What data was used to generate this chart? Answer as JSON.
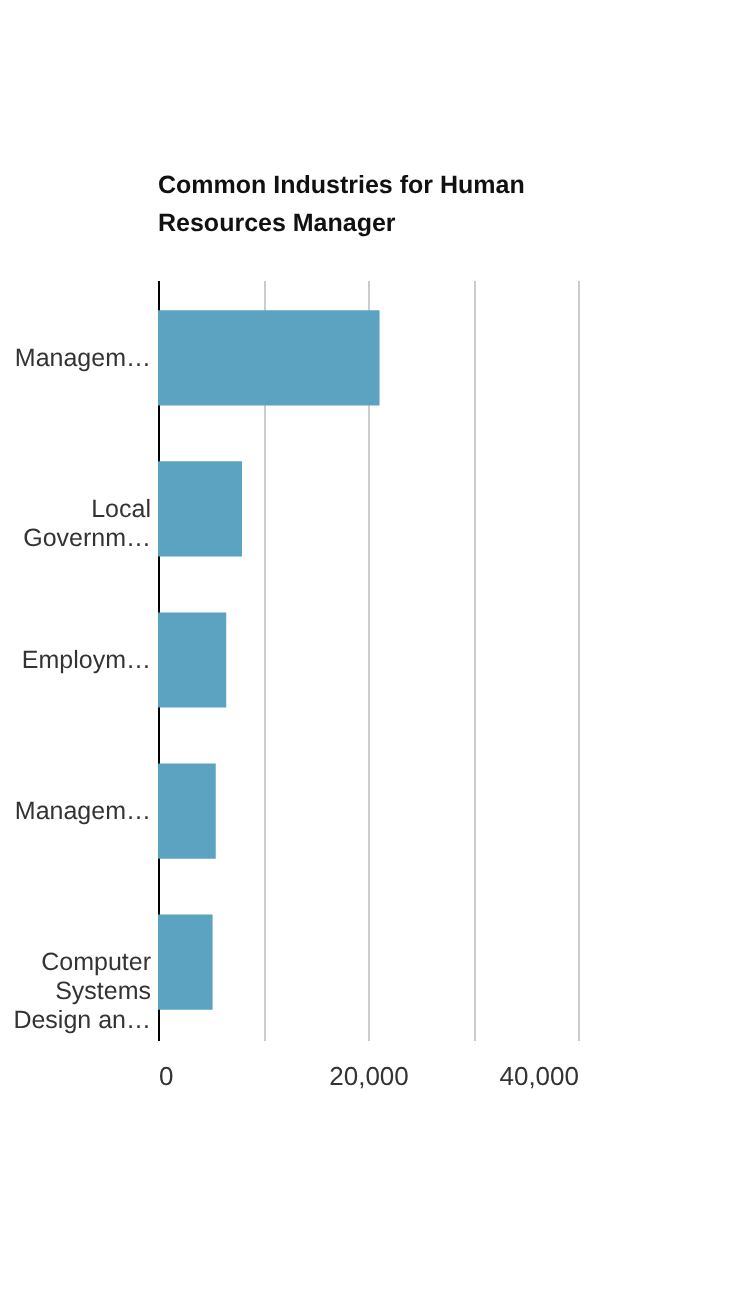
{
  "chart_data": {
    "type": "bar",
    "orientation": "horizontal",
    "title": "Common Industries for Human Resources Manager",
    "categories": [
      "Managem…",
      "Local Governm…",
      "Employm…",
      "Managem…",
      "Computer Systems Design an…"
    ],
    "values": [
      21100,
      8000,
      6500,
      5500,
      5200
    ],
    "color": "#5ba3c0",
    "xlim": [
      0,
      40000
    ],
    "xticks": [
      0,
      {
        "value": 10000,
        "label": null
      },
      {
        "value": 20000,
        "label": "20,000"
      },
      {
        "value": 30000,
        "label": null
      },
      {
        "value": 40000,
        "label": "40,000"
      }
    ],
    "grid": "x"
  }
}
